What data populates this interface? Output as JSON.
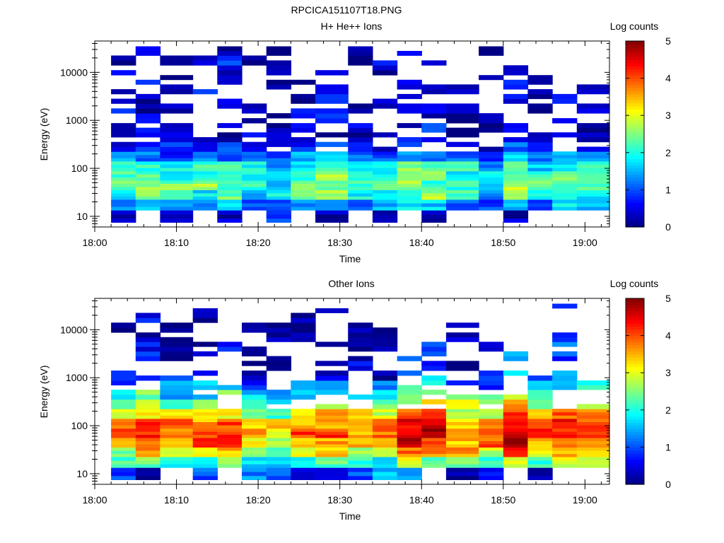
{
  "figure_title": "RPCICA151107T18.PNG",
  "colorbar": {
    "label": "Log counts",
    "ticks": [
      "0",
      "1",
      "2",
      "3",
      "4",
      "5"
    ],
    "range": [
      0,
      5
    ],
    "colormap": "jet"
  },
  "chart_data": [
    {
      "type": "heatmap",
      "title": "H+ He++ Ions",
      "xlabel": "Time",
      "ylabel": "Energy (eV)",
      "x_ticks": [
        "18:00",
        "18:10",
        "18:20",
        "18:30",
        "18:40",
        "18:50",
        "19:00"
      ],
      "y_ticks": [
        "10",
        "100",
        "1000",
        "10000"
      ],
      "y_scale": "log",
      "x_range": [
        "18:00",
        "19:03"
      ],
      "y_range_eV": [
        6,
        45000
      ],
      "column_start_times": [
        "18:02",
        "18:05",
        "18:08",
        "18:12",
        "18:15",
        "18:18",
        "18:21",
        "18:24",
        "18:27",
        "18:31",
        "18:34",
        "18:37",
        "18:40",
        "18:43",
        "18:47",
        "18:50",
        "18:53",
        "18:56",
        "18:59"
      ],
      "column_end_time": "19:03",
      "energy_bins_eV": [
        10,
        18,
        28,
        45,
        70,
        110,
        180,
        280,
        450,
        700,
        1100,
        1800,
        2800,
        4500,
        7000,
        11000,
        18000,
        28000
      ],
      "row_profile": [
        0.5,
        1.4,
        2.0,
        2.2,
        2.1,
        1.9,
        1.2,
        0.6,
        0.3,
        0.3,
        0.3,
        0.3,
        0.25,
        0.25,
        0.2,
        0.2,
        0.15,
        0.1
      ],
      "column_gain": [
        0,
        0.2,
        -0.1,
        0.1,
        0.3,
        -0.2,
        -0.3,
        0.1,
        0.3,
        -0.1,
        0,
        0.3,
        0.3,
        -0.1,
        -0.3,
        0.5,
        -0.2,
        0.3,
        0.1
      ],
      "top_energy_eV": [
        25000,
        35000,
        35000,
        30000,
        35000,
        20000,
        32000,
        25000,
        40000,
        40000,
        25000,
        30000,
        22000,
        15000,
        30000,
        15000,
        10000,
        6000,
        7000
      ],
      "low_gap_columns": [
        1,
        3,
        6,
        8,
        10,
        11,
        13,
        16,
        17,
        18
      ],
      "lowest_bin_level": [
        0.3,
        -1,
        0.3,
        -1,
        0.3,
        -1,
        0.9,
        -1,
        0.3,
        -1,
        0.3,
        -1,
        0.3,
        -1,
        -1,
        0.3,
        -1,
        -1,
        -1
      ]
    },
    {
      "type": "heatmap",
      "title": "Other Ions",
      "xlabel": "Time",
      "ylabel": "Energy (eV)",
      "x_ticks": [
        "18:00",
        "18:10",
        "18:20",
        "18:30",
        "18:40",
        "18:50",
        "19:00"
      ],
      "y_ticks": [
        "10",
        "100",
        "1000",
        "10000"
      ],
      "y_scale": "log",
      "x_range": [
        "18:00",
        "19:03"
      ],
      "y_range_eV": [
        6,
        45000
      ],
      "column_start_times": [
        "18:02",
        "18:05",
        "18:08",
        "18:12",
        "18:15",
        "18:18",
        "18:21",
        "18:24",
        "18:27",
        "18:31",
        "18:34",
        "18:37",
        "18:40",
        "18:43",
        "18:47",
        "18:50",
        "18:53",
        "18:56",
        "18:59"
      ],
      "column_end_time": "19:03",
      "energy_bins_eV": [
        10,
        18,
        28,
        45,
        70,
        110,
        180,
        280,
        450,
        700,
        1100,
        1800,
        2800,
        4500,
        7000,
        11000,
        18000,
        28000
      ],
      "row_profile": [
        1.2,
        2.2,
        3.2,
        3.8,
        4.0,
        3.7,
        3.1,
        2.6,
        2.0,
        1.4,
        0.8,
        0.4,
        0.3,
        0.2,
        0.2,
        0.15,
        0.15,
        0.1
      ],
      "column_gain": [
        -0.3,
        0.2,
        -0.2,
        -0.1,
        0.2,
        -0.6,
        -0.7,
        -0.1,
        0,
        -0.2,
        -0.3,
        0.5,
        0.5,
        0,
        -0.2,
        0.9,
        0.1,
        0.5,
        0.3
      ],
      "top_energy_eV": [
        12000,
        35000,
        12000,
        32000,
        5000,
        15000,
        25000,
        22000,
        40000,
        15000,
        14000,
        15000,
        15000,
        12000,
        10000,
        4000,
        1200,
        35000,
        1000
      ],
      "low_gap_columns": [
        0,
        2,
        3,
        4,
        5,
        6,
        7,
        9,
        10,
        11,
        12,
        14,
        15,
        16,
        17,
        18
      ],
      "lowest_bin_level": [
        1.0,
        0.2,
        -1,
        1.0,
        -1,
        1.3,
        1.2,
        0.3,
        0.3,
        1.0,
        1.6,
        1.6,
        -1,
        0.2,
        0.6,
        -1,
        0.1,
        -1,
        -1
      ]
    }
  ]
}
